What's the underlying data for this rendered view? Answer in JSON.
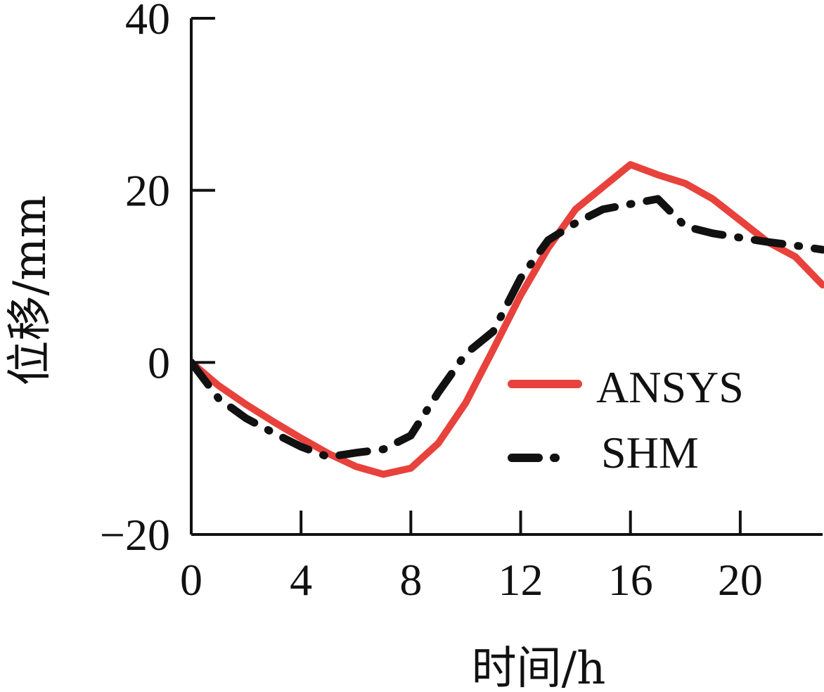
{
  "chart_data": {
    "type": "line",
    "title": "",
    "xlabel": "时间/h",
    "ylabel": "位移/mm",
    "xlim": [
      0,
      23
    ],
    "ylim": [
      -20,
      40
    ],
    "xticks": [
      0,
      4,
      8,
      12,
      16,
      20
    ],
    "yticks": [
      -20,
      0,
      20,
      40
    ],
    "x_tick_labels": [
      "0",
      "4",
      "8",
      "12",
      "16",
      "20"
    ],
    "y_tick_labels": [
      "−20",
      "0",
      "20",
      "40"
    ],
    "grid": false,
    "legend_position": "center-right",
    "series": [
      {
        "name": "ANSYS",
        "color": "#e8423c",
        "style": "solid",
        "x": [
          0,
          1,
          2,
          3,
          4,
          5,
          6,
          7,
          8,
          9,
          10,
          11,
          12,
          13,
          14,
          15,
          16,
          17,
          18,
          19,
          20,
          21,
          22,
          23
        ],
        "y": [
          0,
          -2.7,
          -4.9,
          -6.9,
          -8.8,
          -10.6,
          -12.1,
          -13.0,
          -12.3,
          -9.4,
          -4.7,
          1.5,
          7.8,
          13.3,
          17.8,
          20.4,
          23.0,
          21.8,
          20.8,
          19.0,
          16.5,
          14.0,
          12.3,
          9.0
        ]
      },
      {
        "name": "SHM",
        "color": "#111111",
        "style": "dashdot",
        "x": [
          0,
          1,
          2,
          3,
          4,
          5,
          6,
          7,
          8,
          9,
          10,
          11,
          12,
          13,
          14,
          15,
          16,
          17,
          18,
          19,
          20,
          21,
          22,
          23
        ],
        "y": [
          0,
          -4.2,
          -6.5,
          -8.2,
          -9.8,
          -11.0,
          -10.5,
          -10.1,
          -8.5,
          -3.5,
          1.0,
          3.6,
          9.8,
          14.2,
          16.2,
          17.8,
          18.4,
          19.0,
          15.8,
          15.0,
          14.5,
          14.0,
          13.6,
          13.1
        ]
      }
    ]
  }
}
